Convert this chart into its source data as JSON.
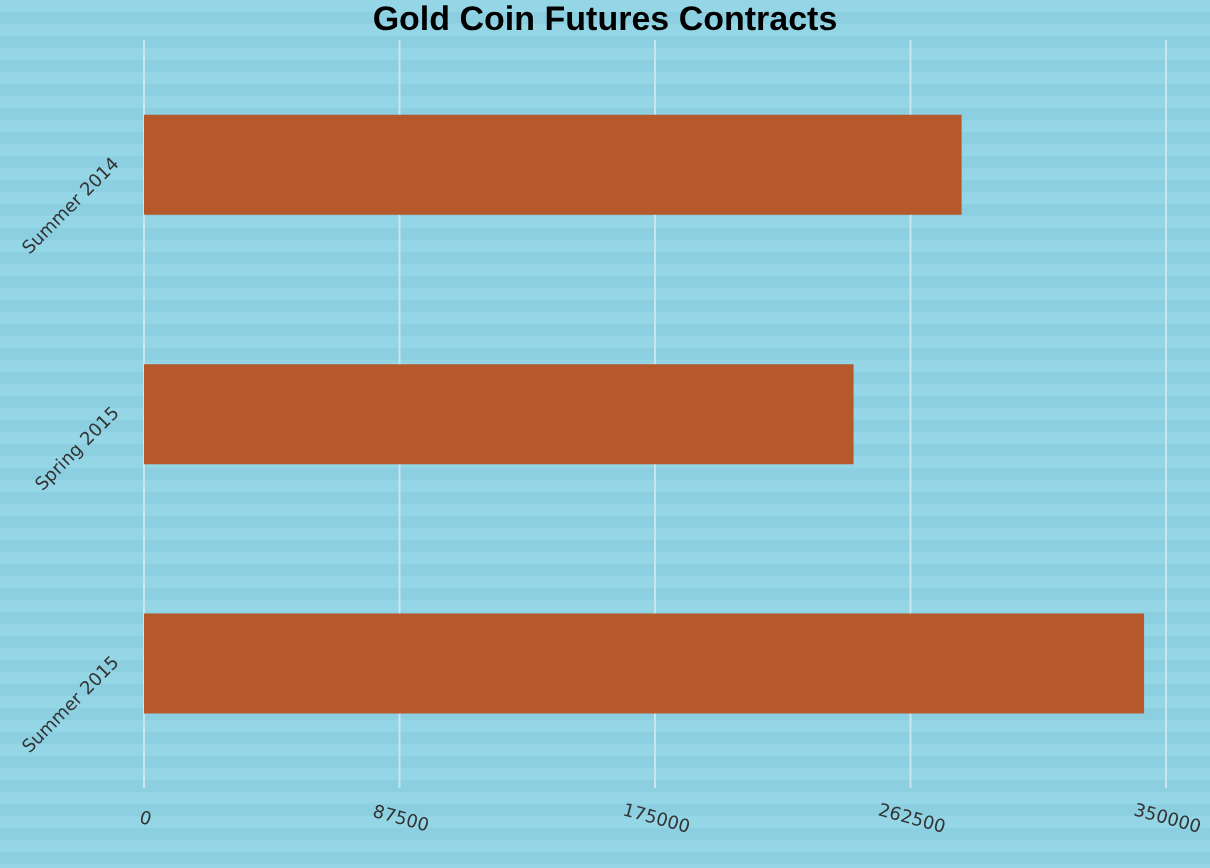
{
  "chart_data": {
    "type": "bar",
    "orientation": "horizontal",
    "title": "Gold Coin Futures Contracts",
    "categories": [
      "Summer 2014",
      "Spring 2015",
      "Summer 2015"
    ],
    "values": [
      280000,
      243000,
      342500
    ],
    "color": "#b5582c",
    "xlim": [
      0,
      350000
    ],
    "xticks": [
      0,
      87500,
      175000,
      262500,
      350000
    ],
    "grid": "x"
  }
}
